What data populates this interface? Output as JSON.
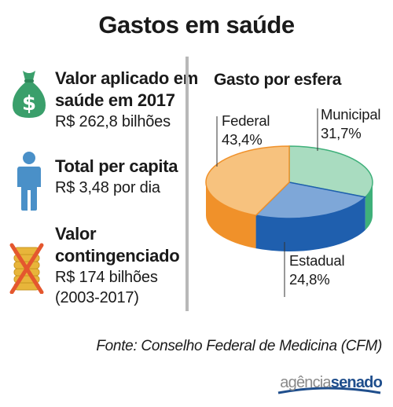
{
  "title": "Gastos em saúde",
  "stats": [
    {
      "label_lines": [
        "Valor aplicado em",
        "saúde em 2017"
      ],
      "value": "R$ 262,8 bilhões",
      "icon": "money-bag-icon"
    },
    {
      "label_lines": [
        "Total per capita"
      ],
      "value": "R$ 3,48 por dia",
      "icon": "person-icon"
    },
    {
      "label_lines": [
        "Valor",
        "contingenciado"
      ],
      "value": "R$ 174 bilhões",
      "extra": "(2003-2017)",
      "icon": "crossed-coins-icon"
    }
  ],
  "chart_data": {
    "type": "pie",
    "title": "Gasto por esfera",
    "slices": [
      {
        "label": "Federal",
        "value": 43.4,
        "value_label": "43,4%",
        "color": "#f7c27e",
        "side_color": "#f0912a"
      },
      {
        "label": "Municipal",
        "value": 31.7,
        "value_label": "31,7%",
        "color": "#a9dcc0",
        "side_color": "#3fb07a"
      },
      {
        "label": "Estadual",
        "value": 24.8,
        "value_label": "24,8%",
        "color": "#7ea7d8",
        "side_color": "#1f5fae"
      }
    ]
  },
  "source": "Fonte: Conselho Federal de Medicina (CFM)",
  "logo": {
    "part1": "agência",
    "part2": "senado"
  },
  "colors": {
    "icon_green": "#3a9f6b",
    "icon_blue": "#4a90c8",
    "icon_gold": "#e8b53a",
    "cross_red": "#e4572e",
    "divider": "#b8b8b8"
  }
}
